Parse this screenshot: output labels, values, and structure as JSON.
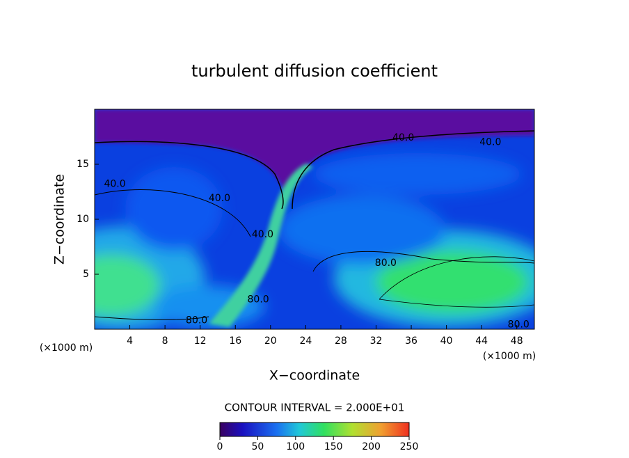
{
  "chart_data": {
    "type": "contour",
    "title": "turbulent diffusion coefficient",
    "xlabel": "X−coordinate",
    "ylabel": "Z−coordinate",
    "x_unit": "(×1000 m)",
    "xlim": [
      0,
      50
    ],
    "ylim": [
      0,
      20
    ],
    "xticks": [
      4,
      8,
      12,
      16,
      20,
      24,
      28,
      32,
      36,
      40,
      44,
      48
    ],
    "yticks": [
      5,
      10,
      15
    ],
    "contour_interval": "CONTOUR INTERVAL = 2.000E+01",
    "contour_labels": [
      {
        "value": 40,
        "label": "40.0",
        "x": 2.3,
        "y": 13.2
      },
      {
        "value": 40,
        "label": "40.0",
        "x": 14.2,
        "y": 11.9
      },
      {
        "value": 40,
        "label": "40.0",
        "x": 35.1,
        "y": 17.4
      },
      {
        "value": 40,
        "label": "40.0",
        "x": 45.0,
        "y": 17.0
      },
      {
        "value": 40,
        "label": "40.0",
        "x": 19.1,
        "y": 8.6
      },
      {
        "value": 80,
        "label": "80.0",
        "x": 33.1,
        "y": 6.0
      },
      {
        "value": 80,
        "label": "80.0",
        "x": 18.6,
        "y": 2.7
      },
      {
        "value": 80,
        "label": "80.0",
        "x": 11.6,
        "y": 0.8
      },
      {
        "value": 80,
        "label": "80.0",
        "x": 48.2,
        "y": 0.4
      }
    ],
    "clim": [
      0,
      250
    ],
    "cticks": [
      0,
      50,
      100,
      150,
      200,
      250
    ]
  }
}
